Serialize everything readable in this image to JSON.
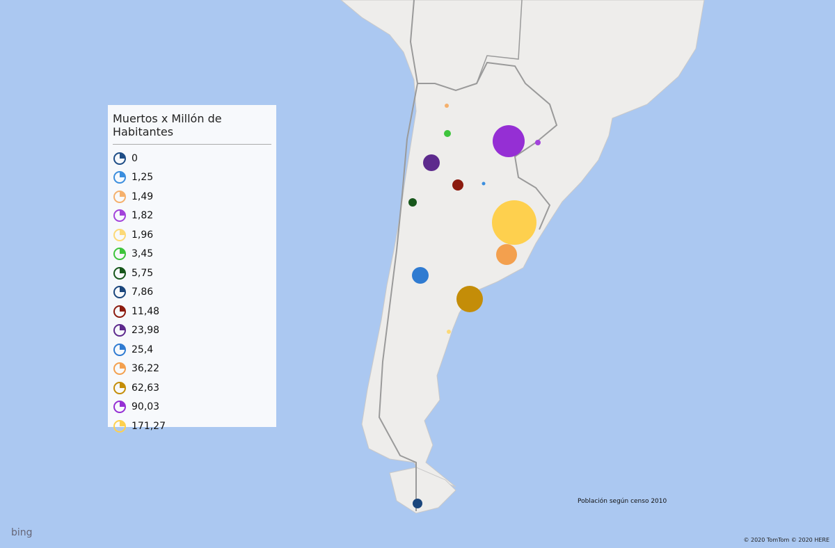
{
  "legend": {
    "title": "Muertos x Millón de Habitantes",
    "items": [
      {
        "label": "0",
        "color": "#1e4d86"
      },
      {
        "label": "1,25",
        "color": "#3b8ede"
      },
      {
        "label": "1,49",
        "color": "#f5b06c"
      },
      {
        "label": "1,82",
        "color": "#a343db"
      },
      {
        "label": "1,96",
        "color": "#fcd977"
      },
      {
        "label": "3,45",
        "color": "#3ec43c"
      },
      {
        "label": "5,75",
        "color": "#17561b"
      },
      {
        "label": "7,86",
        "color": "#1b467c"
      },
      {
        "label": "11,48",
        "color": "#8c1b0f"
      },
      {
        "label": "23,98",
        "color": "#5d2a8d"
      },
      {
        "label": "25,4",
        "color": "#2f7bd1"
      },
      {
        "label": "36,22",
        "color": "#f3a04e"
      },
      {
        "label": "62,63",
        "color": "#c48d08"
      },
      {
        "label": "90,03",
        "color": "#952fd4"
      },
      {
        "label": "171,27",
        "color": "#fed04e"
      }
    ]
  },
  "note": "Población según censo 2010",
  "brand": "bing",
  "copyright": "© 2020 TomTom © 2020 HERE"
}
